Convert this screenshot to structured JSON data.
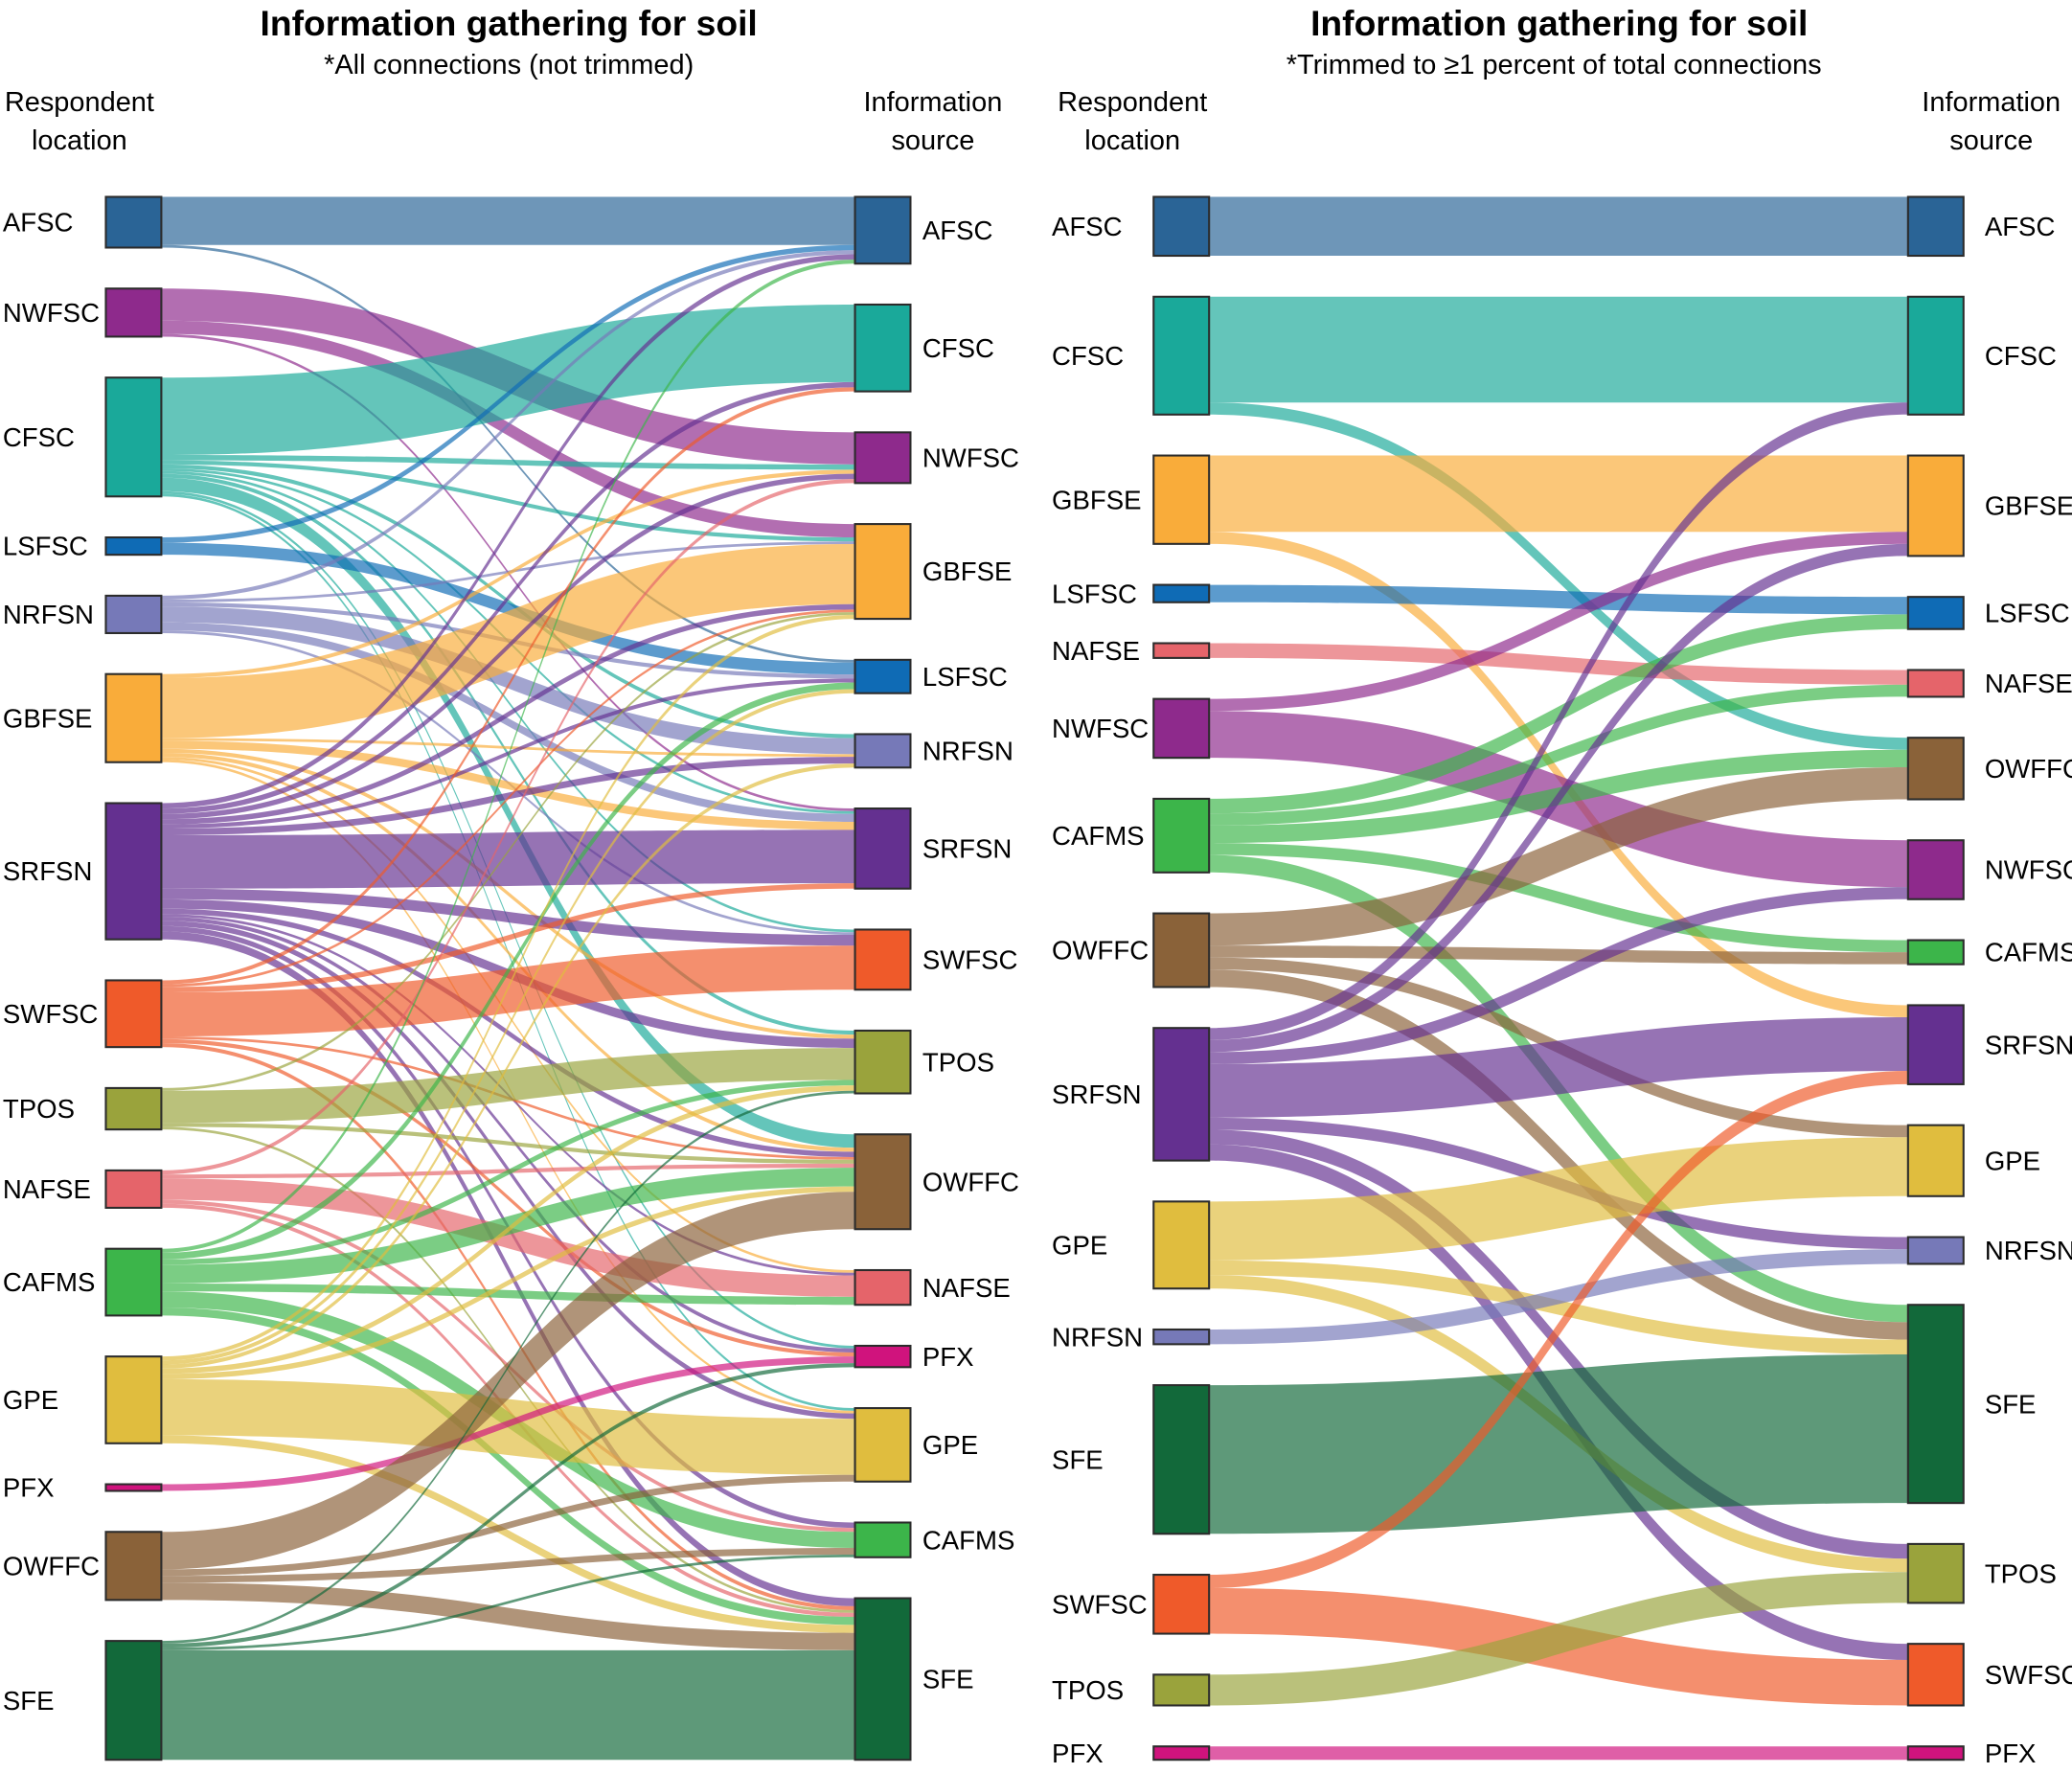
{
  "colors": {
    "AFSC": "#2a6496",
    "NWFSC": "#8e2a8c",
    "CFSC": "#1aa99a",
    "LSFSC": "#0f6bb5",
    "NRFSN": "#7679b8",
    "GBFSE": "#f9ac3a",
    "SRFSN": "#643090",
    "SWFSC": "#ef5a2a",
    "TPOS": "#9aa33c",
    "NAFSE": "#e5646a",
    "CAFMS": "#3cb54a",
    "GPE": "#e0bd3e",
    "PFX": "#d0137d",
    "OWFFC": "#8a6239",
    "SFE": "#12693a"
  },
  "chart_data": [
    {
      "type": "sankey",
      "title": "Information gathering for soil",
      "subtitle": "*All connections (not trimmed)",
      "left_header": [
        "Respondent",
        "location"
      ],
      "right_header": [
        "Information",
        "source"
      ],
      "sources": [
        "AFSC",
        "NWFSC",
        "CFSC",
        "LSFSC",
        "NRFSN",
        "GBFSE",
        "SRFSN",
        "SWFSC",
        "TPOS",
        "NAFSE",
        "CAFMS",
        "GPE",
        "PFX",
        "OWFFC",
        "SFE"
      ],
      "targets": [
        "AFSC",
        "CFSC",
        "NWFSC",
        "GBFSE",
        "LSFSC",
        "NRFSN",
        "SRFSN",
        "SWFSC",
        "TPOS",
        "OWFFC",
        "NAFSE",
        "PFX",
        "GPE",
        "CAFMS",
        "SFE"
      ],
      "links": [
        [
          "AFSC",
          "AFSC",
          36
        ],
        [
          "AFSC",
          "LSFSC",
          2
        ],
        [
          "NWFSC",
          "NWFSC",
          24
        ],
        [
          "NWFSC",
          "GBFSE",
          10
        ],
        [
          "NWFSC",
          "SRFSN",
          2
        ],
        [
          "CFSC",
          "CFSC",
          58
        ],
        [
          "CFSC",
          "NWFSC",
          4
        ],
        [
          "CFSC",
          "GBFSE",
          3
        ],
        [
          "CFSC",
          "NRFSN",
          3
        ],
        [
          "CFSC",
          "SRFSN",
          2
        ],
        [
          "CFSC",
          "SWFSC",
          2
        ],
        [
          "CFSC",
          "TPOS",
          3
        ],
        [
          "CFSC",
          "OWFFC",
          10
        ],
        [
          "CFSC",
          "PFX",
          2
        ],
        [
          "CFSC",
          "GPE",
          2
        ],
        [
          "LSFSC",
          "AFSC",
          4
        ],
        [
          "LSFSC",
          "LSFSC",
          9
        ],
        [
          "NRFSN",
          "AFSC",
          3
        ],
        [
          "NRFSN",
          "GBFSE",
          2
        ],
        [
          "NRFSN",
          "LSFSC",
          3
        ],
        [
          "NRFSN",
          "NRFSN",
          12
        ],
        [
          "NRFSN",
          "SRFSN",
          6
        ],
        [
          "NRFSN",
          "SWFSC",
          2
        ],
        [
          "GBFSE",
          "NWFSC",
          3
        ],
        [
          "GBFSE",
          "GBFSE",
          45
        ],
        [
          "GBFSE",
          "NRFSN",
          2
        ],
        [
          "GBFSE",
          "SRFSN",
          6
        ],
        [
          "GBFSE",
          "TPOS",
          3
        ],
        [
          "GBFSE",
          "OWFFC",
          3
        ],
        [
          "GBFSE",
          "NAFSE",
          2
        ],
        [
          "GBFSE",
          "GPE",
          2
        ],
        [
          "SRFSN",
          "AFSC",
          4
        ],
        [
          "SRFSN",
          "CFSC",
          4
        ],
        [
          "SRFSN",
          "NWFSC",
          4
        ],
        [
          "SRFSN",
          "GBFSE",
          4
        ],
        [
          "SRFSN",
          "LSFSC",
          3
        ],
        [
          "SRFSN",
          "NRFSN",
          5
        ],
        [
          "SRFSN",
          "SRFSN",
          40
        ],
        [
          "SRFSN",
          "SWFSC",
          8
        ],
        [
          "SRFSN",
          "TPOS",
          7
        ],
        [
          "SRFSN",
          "OWFFC",
          4
        ],
        [
          "SRFSN",
          "NAFSE",
          2
        ],
        [
          "SRFSN",
          "PFX",
          3
        ],
        [
          "SRFSN",
          "GPE",
          4
        ],
        [
          "SRFSN",
          "CAFMS",
          4
        ],
        [
          "SRFSN",
          "SFE",
          6
        ],
        [
          "SWFSC",
          "CFSC",
          3
        ],
        [
          "SWFSC",
          "GBFSE",
          2
        ],
        [
          "SWFSC",
          "SRFSN",
          4
        ],
        [
          "SWFSC",
          "SWFSC",
          33
        ],
        [
          "SWFSC",
          "OWFFC",
          2
        ],
        [
          "SWFSC",
          "PFX",
          3
        ],
        [
          "SWFSC",
          "SFE",
          3
        ],
        [
          "TPOS",
          "GBFSE",
          2
        ],
        [
          "TPOS",
          "TPOS",
          24
        ],
        [
          "TPOS",
          "OWFFC",
          3
        ],
        [
          "TPOS",
          "SFE",
          2
        ],
        [
          "NAFSE",
          "NWFSC",
          3
        ],
        [
          "NAFSE",
          "OWFFC",
          3
        ],
        [
          "NAFSE",
          "NAFSE",
          16
        ],
        [
          "NAFSE",
          "CAFMS",
          3
        ],
        [
          "NAFSE",
          "SFE",
          3
        ],
        [
          "CAFMS",
          "AFSC",
          3
        ],
        [
          "CAFMS",
          "LSFSC",
          5
        ],
        [
          "CAFMS",
          "TPOS",
          4
        ],
        [
          "CAFMS",
          "OWFFC",
          14
        ],
        [
          "CAFMS",
          "NAFSE",
          6
        ],
        [
          "CAFMS",
          "CAFMS",
          12
        ],
        [
          "CAFMS",
          "SFE",
          6
        ],
        [
          "GPE",
          "GBFSE",
          3
        ],
        [
          "GPE",
          "LSFSC",
          3
        ],
        [
          "GPE",
          "NRFSN",
          3
        ],
        [
          "GPE",
          "TPOS",
          4
        ],
        [
          "GPE",
          "OWFFC",
          4
        ],
        [
          "GPE",
          "GPE",
          42
        ],
        [
          "GPE",
          "SFE",
          6
        ],
        [
          "PFX",
          "PFX",
          5
        ],
        [
          "OWFFC",
          "OWFFC",
          28
        ],
        [
          "OWFFC",
          "GPE",
          5
        ],
        [
          "OWFFC",
          "CAFMS",
          5
        ],
        [
          "OWFFC",
          "SFE",
          13
        ],
        [
          "SFE",
          "TPOS",
          2
        ],
        [
          "SFE",
          "PFX",
          3
        ],
        [
          "SFE",
          "CAFMS",
          2
        ],
        [
          "SFE",
          "SFE",
          82
        ]
      ]
    },
    {
      "type": "sankey",
      "title": "Information gathering for soil",
      "subtitle": "*Trimmed to ≥1 percent of total connections",
      "left_header": [
        "Respondent",
        "location"
      ],
      "right_header": [
        "Information",
        "source"
      ],
      "sources": [
        "AFSC",
        "CFSC",
        "GBFSE",
        "LSFSC",
        "NAFSE",
        "NWFSC",
        "CAFMS",
        "OWFFC",
        "SRFSN",
        "GPE",
        "NRFSN",
        "SFE",
        "SWFSC",
        "TPOS",
        "PFX"
      ],
      "targets": [
        "AFSC",
        "CFSC",
        "GBFSE",
        "LSFSC",
        "NAFSE",
        "OWFFC",
        "NWFSC",
        "CAFMS",
        "SRFSN",
        "GPE",
        "NRFSN",
        "SFE",
        "TPOS",
        "SWFSC",
        "PFX"
      ],
      "links": [
        [
          "AFSC",
          "AFSC",
          44
        ],
        [
          "CFSC",
          "CFSC",
          79
        ],
        [
          "CFSC",
          "OWFFC",
          9
        ],
        [
          "GBFSE",
          "GBFSE",
          57
        ],
        [
          "GBFSE",
          "SRFSN",
          9
        ],
        [
          "LSFSC",
          "LSFSC",
          13
        ],
        [
          "NAFSE",
          "NAFSE",
          11
        ],
        [
          "NWFSC",
          "GBFSE",
          9
        ],
        [
          "NWFSC",
          "NWFSC",
          35
        ],
        [
          "CAFMS",
          "LSFSC",
          11
        ],
        [
          "CAFMS",
          "NAFSE",
          9
        ],
        [
          "CAFMS",
          "OWFFC",
          13
        ],
        [
          "CAFMS",
          "CAFMS",
          9
        ],
        [
          "CAFMS",
          "SFE",
          13
        ],
        [
          "OWFFC",
          "OWFFC",
          24
        ],
        [
          "OWFFC",
          "CAFMS",
          9
        ],
        [
          "OWFFC",
          "GPE",
          9
        ],
        [
          "OWFFC",
          "SFE",
          13
        ],
        [
          "SRFSN",
          "CFSC",
          9
        ],
        [
          "SRFSN",
          "GBFSE",
          9
        ],
        [
          "SRFSN",
          "NWFSC",
          9
        ],
        [
          "SRFSN",
          "SRFSN",
          40
        ],
        [
          "SRFSN",
          "NRFSN",
          9
        ],
        [
          "SRFSN",
          "TPOS",
          11
        ],
        [
          "SRFSN",
          "SWFSC",
          12
        ],
        [
          "GPE",
          "GPE",
          44
        ],
        [
          "GPE",
          "SFE",
          11
        ],
        [
          "GPE",
          "TPOS",
          10
        ],
        [
          "NRFSN",
          "NRFSN",
          11
        ],
        [
          "SFE",
          "SFE",
          111
        ],
        [
          "SWFSC",
          "SRFSN",
          10
        ],
        [
          "SWFSC",
          "SWFSC",
          34
        ],
        [
          "TPOS",
          "TPOS",
          23
        ],
        [
          "PFX",
          "PFX",
          10
        ]
      ]
    }
  ]
}
